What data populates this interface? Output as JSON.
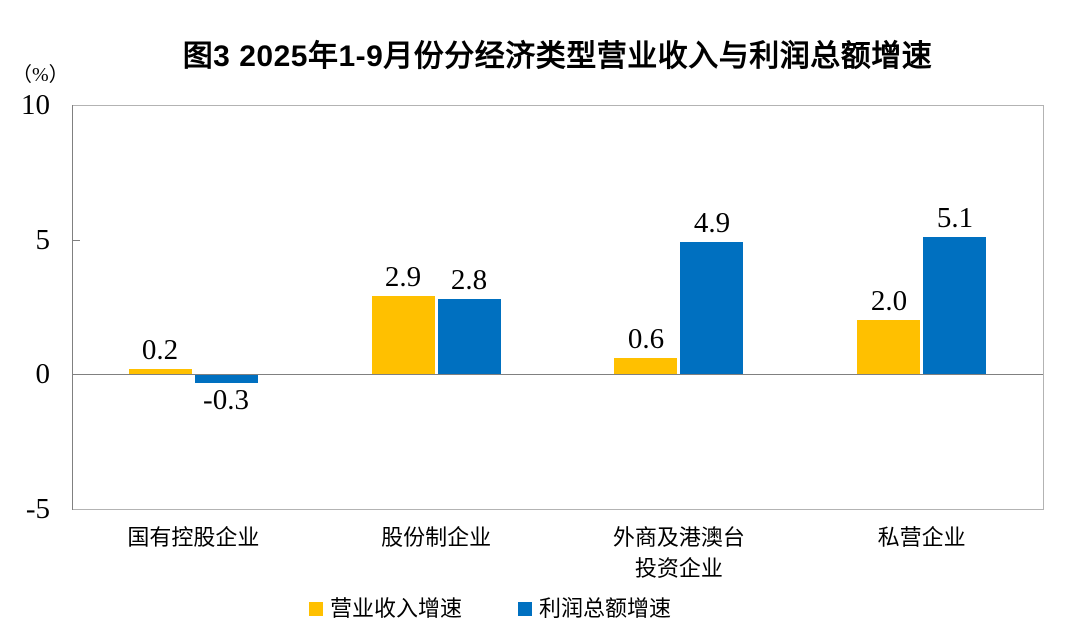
{
  "header": {
    "title": "图3 2025年1-9月份分经济类型营业收入与利润总额增速",
    "unit_label": "（%）"
  },
  "colors": {
    "revenue_series": "#FFC000",
    "profit_series": "#0070C0",
    "axis_line": "#808080",
    "plot_border": "#B3B3B3",
    "text": "#000000",
    "background": "#FFFFFF"
  },
  "chart_data": {
    "type": "bar",
    "title": "图3 2025年1-9月份分经济类型营业收入与利润总额增速",
    "unit": "（%）",
    "categories": [
      {
        "lines": [
          "国有控股企业"
        ]
      },
      {
        "lines": [
          "股份制企业"
        ]
      },
      {
        "lines": [
          "外商及港澳台",
          "投资企业"
        ]
      },
      {
        "lines": [
          "私营企业"
        ]
      }
    ],
    "series": [
      {
        "name": "营业收入增速",
        "color": "#FFC000",
        "values": [
          0.2,
          2.9,
          0.6,
          2.0
        ],
        "labels": [
          "0.2",
          "2.9",
          "0.6",
          "2.0"
        ]
      },
      {
        "name": "利润总额增速",
        "color": "#0070C0",
        "values": [
          -0.3,
          2.8,
          4.9,
          5.1
        ],
        "labels": [
          "-0.3",
          "2.8",
          "4.9",
          "5.1"
        ]
      }
    ],
    "ylim": [
      -5,
      10
    ],
    "yticks": [
      10,
      5,
      0,
      -5
    ],
    "grid": false,
    "legend_position": "bottom"
  }
}
